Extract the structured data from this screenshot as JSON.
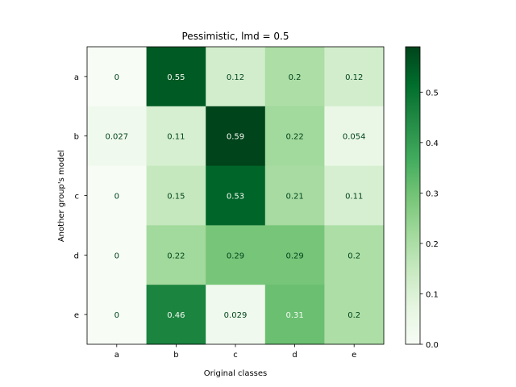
{
  "chart_data": {
    "type": "heatmap",
    "title": "Pessimistic, lmd = 0.5",
    "xlabel": "Original classes",
    "ylabel": "Another group's model",
    "x_categories": [
      "a",
      "b",
      "c",
      "d",
      "e"
    ],
    "y_categories": [
      "a",
      "b",
      "c",
      "d",
      "e"
    ],
    "values": [
      [
        0,
        0.55,
        0.12,
        0.2,
        0.12
      ],
      [
        0.027,
        0.11,
        0.59,
        0.22,
        0.054
      ],
      [
        0,
        0.15,
        0.53,
        0.21,
        0.11
      ],
      [
        0,
        0.22,
        0.29,
        0.29,
        0.2
      ],
      [
        0,
        0.46,
        0.029,
        0.31,
        0.2
      ]
    ],
    "cell_labels": [
      [
        "0",
        "0.55",
        "0.12",
        "0.2",
        "0.12"
      ],
      [
        "0.027",
        "0.11",
        "0.59",
        "0.22",
        "0.054"
      ],
      [
        "0",
        "0.15",
        "0.53",
        "0.21",
        "0.11"
      ],
      [
        "0",
        "0.22",
        "0.29",
        "0.29",
        "0.2"
      ],
      [
        "0",
        "0.46",
        "0.029",
        "0.31",
        "0.2"
      ]
    ],
    "colormap": "Greens",
    "vmin": 0,
    "vmax": 0.59,
    "colorbar_ticks": [
      0.0,
      0.1,
      0.2,
      0.3,
      0.4,
      0.5
    ],
    "colorbar_tick_labels": [
      "0.0",
      "0.1",
      "0.2",
      "0.3",
      "0.4",
      "0.5"
    ],
    "grid": false
  }
}
